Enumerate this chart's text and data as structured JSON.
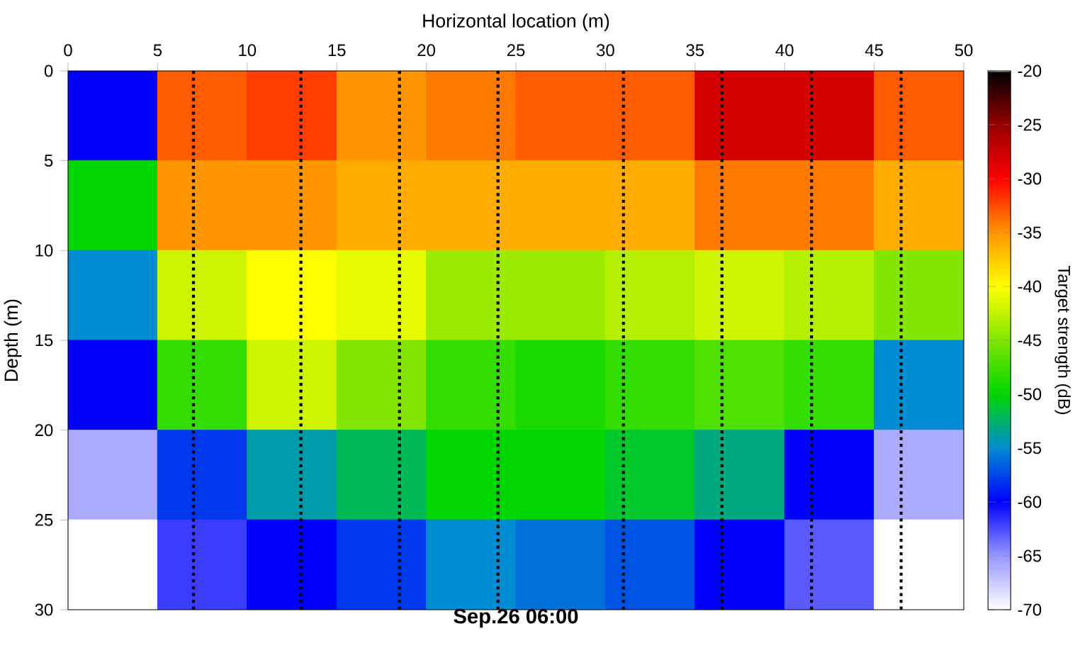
{
  "chart_data": {
    "type": "heatmap",
    "title": "Sep.26 06:00",
    "xlabel": "Horizontal location (m)",
    "ylabel": "Depth (m)",
    "clabel": "Target strength (dB)",
    "x": [
      2.5,
      7.5,
      12.5,
      17.5,
      22.5,
      27.5,
      32.5,
      37.5,
      42.5,
      47.5
    ],
    "y": [
      2.5,
      7.5,
      12.5,
      17.5,
      22.5,
      27.5
    ],
    "cells": [
      [
        -60,
        -33,
        -32,
        -35,
        -34,
        -33,
        -33,
        -28,
        -28,
        -33
      ],
      [
        -50,
        -35,
        -35,
        -36,
        -36,
        -36,
        -36,
        -34,
        -34,
        -36
      ],
      [
        -55,
        -42,
        -40,
        -41,
        -44,
        -44,
        -43,
        -42,
        -43,
        -45
      ],
      [
        -60,
        -48,
        -42,
        -45,
        -48,
        -49,
        -48,
        -47,
        -48,
        -55
      ],
      [
        -66,
        -58,
        -54,
        -52,
        -50,
        -50,
        -51,
        -53,
        -60,
        -66
      ],
      [
        -70,
        -62,
        -60,
        -58,
        -55,
        -56,
        -57,
        -60,
        -63,
        -70
      ]
    ],
    "xlim": [
      0,
      50
    ],
    "xticks": [
      0,
      5,
      10,
      15,
      20,
      25,
      30,
      35,
      40,
      45,
      50
    ],
    "ylim": [
      30,
      0
    ],
    "yticks": [
      0,
      5,
      10,
      15,
      20,
      25,
      30
    ],
    "clim": [
      -70,
      -20
    ],
    "cticks": [
      -70,
      -65,
      -60,
      -55,
      -50,
      -45,
      -40,
      -35,
      -30,
      -25,
      -20
    ],
    "ref_lines": [
      {
        "axis": "x",
        "value": 7,
        "color": "#000000",
        "line_style": "dotted"
      },
      {
        "axis": "x",
        "value": 13,
        "color": "#000000",
        "line_style": "dotted"
      },
      {
        "axis": "x",
        "value": 18.5,
        "color": "#000000",
        "line_style": "dotted"
      },
      {
        "axis": "x",
        "value": 24,
        "color": "#000000",
        "line_style": "dotted"
      },
      {
        "axis": "x",
        "value": 31,
        "color": "#000000",
        "line_style": "dotted"
      },
      {
        "axis": "x",
        "value": 36.5,
        "color": "#000000",
        "line_style": "dotted"
      },
      {
        "axis": "x",
        "value": 41.5,
        "color": "#000000",
        "line_style": "dotted"
      },
      {
        "axis": "x",
        "value": 46.5,
        "color": "#000000",
        "line_style": "dotted"
      }
    ]
  }
}
